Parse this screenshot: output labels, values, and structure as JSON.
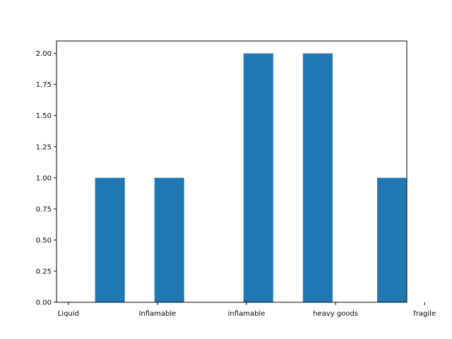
{
  "chart_data": {
    "type": "bar",
    "title": "",
    "xlabel": "",
    "ylabel": "",
    "categories": [
      "Liquid",
      "Inflamable",
      "inflamable",
      "heavy goods",
      "fragile"
    ],
    "values": [
      1,
      1,
      2,
      2,
      1
    ],
    "bar_x": [
      0.225,
      0.725,
      1.475,
      1.975,
      2.6
    ],
    "bar_width": 0.25,
    "xlim": [
      -0.1,
      2.85
    ],
    "ylim": [
      0,
      2.1
    ],
    "x_ticks": [
      {
        "value": 0,
        "label": "Liquid"
      },
      {
        "value": 0.75,
        "label": "Inflamable"
      },
      {
        "value": 1.5,
        "label": "inflamable"
      },
      {
        "value": 2.25,
        "label": "heavy goods"
      },
      {
        "value": 3,
        "label": "fragile"
      }
    ],
    "y_ticks": [
      {
        "value": 0,
        "label": "0.00"
      },
      {
        "value": 0.25,
        "label": "0.25"
      },
      {
        "value": 0.5,
        "label": "0.50"
      },
      {
        "value": 0.75,
        "label": "0.75"
      },
      {
        "value": 1,
        "label": "1.00"
      },
      {
        "value": 1.25,
        "label": "1.25"
      },
      {
        "value": 1.5,
        "label": "1.50"
      },
      {
        "value": 1.75,
        "label": "1.75"
      },
      {
        "value": 2,
        "label": "2.00"
      }
    ],
    "bar_color": "#1f77b4",
    "grid": false,
    "legend": "none"
  }
}
